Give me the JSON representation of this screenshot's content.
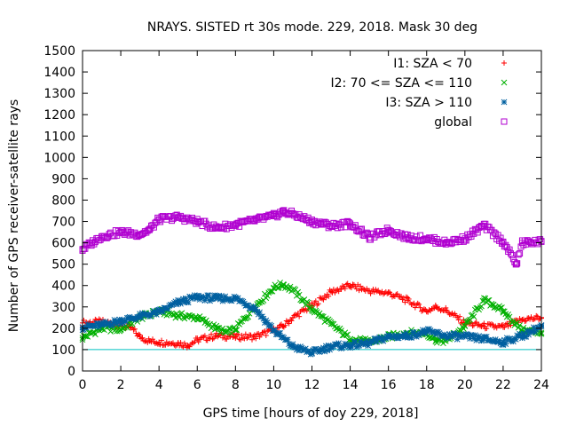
{
  "chart_data": {
    "type": "scatter",
    "title": "NRAYS. SISTED rt 30s mode. 229, 2018. Mask 30 deg",
    "xlabel": "GPS time [hours of doy 229, 2018]",
    "ylabel": "Number of GPS receiver-satellite rays",
    "xlim": [
      0,
      24
    ],
    "ylim": [
      0,
      1500
    ],
    "xticks": [
      "0",
      "2",
      "4",
      "6",
      "8",
      "10",
      "12",
      "14",
      "16",
      "18",
      "20",
      "22",
      "24"
    ],
    "yticks": [
      "0",
      "100",
      "200",
      "300",
      "400",
      "500",
      "600",
      "700",
      "800",
      "900",
      "1000",
      "1100",
      "1200",
      "1300",
      "1400",
      "1500"
    ],
    "grid": false,
    "legend_position": "top-right",
    "reference_line": {
      "y": 100,
      "color": "#00c0c0"
    },
    "series": [
      {
        "name": "I1: SZA < 70",
        "marker": "+",
        "color": "#ff0000",
        "points": [
          [
            0,
            225
          ],
          [
            1,
            230
          ],
          [
            2,
            215
          ],
          [
            2.5,
            205
          ],
          [
            3,
            160
          ],
          [
            3.5,
            140
          ],
          [
            4,
            135
          ],
          [
            5,
            130
          ],
          [
            5.5,
            120
          ],
          [
            6,
            145
          ],
          [
            7,
            165
          ],
          [
            8,
            160
          ],
          [
            9,
            160
          ],
          [
            10,
            190
          ],
          [
            10.5,
            210
          ],
          [
            11,
            250
          ],
          [
            12,
            305
          ],
          [
            13,
            370
          ],
          [
            14,
            400
          ],
          [
            15,
            375
          ],
          [
            16,
            365
          ],
          [
            17,
            330
          ],
          [
            18,
            280
          ],
          [
            18.5,
            300
          ],
          [
            19,
            285
          ],
          [
            20,
            225
          ],
          [
            21,
            210
          ],
          [
            22,
            205
          ],
          [
            23,
            240
          ],
          [
            24,
            250
          ]
        ]
      },
      {
        "name": "I2: 70 <= SZA <= 110",
        "marker": "x",
        "color": "#00b000",
        "points": [
          [
            0,
            155
          ],
          [
            1,
            200
          ],
          [
            2,
            195
          ],
          [
            3,
            250
          ],
          [
            4,
            280
          ],
          [
            5,
            260
          ],
          [
            6,
            250
          ],
          [
            7,
            200
          ],
          [
            7.5,
            180
          ],
          [
            8,
            195
          ],
          [
            9,
            300
          ],
          [
            10,
            390
          ],
          [
            10.5,
            405
          ],
          [
            11,
            380
          ],
          [
            12,
            290
          ],
          [
            13,
            220
          ],
          [
            14,
            150
          ],
          [
            15,
            135
          ],
          [
            16,
            160
          ],
          [
            17,
            180
          ],
          [
            18,
            175
          ],
          [
            18.5,
            145
          ],
          [
            19,
            140
          ],
          [
            20,
            210
          ],
          [
            21,
            330
          ],
          [
            21.5,
            310
          ],
          [
            22,
            280
          ],
          [
            23,
            190
          ],
          [
            24,
            180
          ]
        ]
      },
      {
        "name": "I3: SZA > 110",
        "marker": "*",
        "color": "#0060a0",
        "points": [
          [
            0,
            205
          ],
          [
            1,
            215
          ],
          [
            2,
            235
          ],
          [
            3,
            255
          ],
          [
            4,
            275
          ],
          [
            5,
            320
          ],
          [
            6,
            345
          ],
          [
            7,
            340
          ],
          [
            8,
            340
          ],
          [
            9,
            295
          ],
          [
            10,
            190
          ],
          [
            11,
            115
          ],
          [
            12,
            85
          ],
          [
            13,
            115
          ],
          [
            14,
            120
          ],
          [
            15,
            130
          ],
          [
            16,
            160
          ],
          [
            17,
            165
          ],
          [
            18,
            185
          ],
          [
            19,
            165
          ],
          [
            20,
            160
          ],
          [
            21,
            150
          ],
          [
            22,
            135
          ],
          [
            23,
            165
          ],
          [
            24,
            210
          ]
        ]
      },
      {
        "name": "global",
        "marker": "square",
        "color": "#b000d0",
        "points": [
          [
            0,
            570
          ],
          [
            0.5,
            600
          ],
          [
            1,
            630
          ],
          [
            2,
            650
          ],
          [
            3,
            640
          ],
          [
            3.5,
            660
          ],
          [
            4,
            710
          ],
          [
            5,
            720
          ],
          [
            6,
            700
          ],
          [
            7,
            670
          ],
          [
            8,
            685
          ],
          [
            9,
            705
          ],
          [
            10,
            725
          ],
          [
            10.5,
            745
          ],
          [
            11,
            735
          ],
          [
            12,
            700
          ],
          [
            13,
            680
          ],
          [
            14,
            690
          ],
          [
            15,
            625
          ],
          [
            16,
            660
          ],
          [
            17,
            625
          ],
          [
            18,
            620
          ],
          [
            19,
            600
          ],
          [
            20,
            620
          ],
          [
            21,
            680
          ],
          [
            22,
            605
          ],
          [
            22.7,
            500
          ],
          [
            23,
            600
          ],
          [
            24,
            605
          ]
        ]
      }
    ]
  }
}
